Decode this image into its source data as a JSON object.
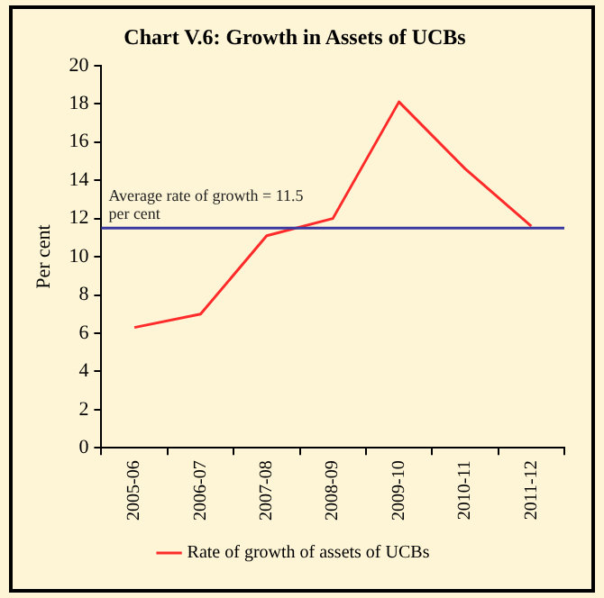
{
  "chart_data": {
    "type": "line",
    "title": "Chart V.6: Growth in Assets of UCBs",
    "ylabel": "Per cent",
    "categories": [
      "2005-06",
      "2006-07",
      "2007-08",
      "2008-09",
      "2009-10",
      "2010-11",
      "2011-12"
    ],
    "series": [
      {
        "name": "Rate of growth of assets of UCBs",
        "color": "#ff2a2a",
        "values": [
          6.3,
          7.0,
          11.1,
          12.0,
          18.1,
          14.6,
          11.6
        ]
      }
    ],
    "ylim": [
      0,
      20
    ],
    "yticks": [
      0,
      2,
      4,
      6,
      8,
      10,
      12,
      14,
      16,
      18,
      20
    ],
    "grid": false,
    "legend": "bottom",
    "marker": "none",
    "line_style": "solid",
    "ref_lines": [
      {
        "axis": "y",
        "value": 11.5,
        "label": "Average rate of growth = 11.5 per cent",
        "color": "#3a3aa0"
      }
    ]
  }
}
